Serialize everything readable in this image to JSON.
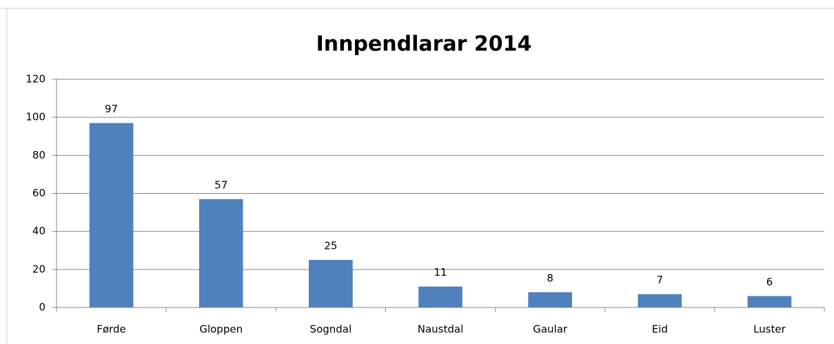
{
  "chart_data": {
    "type": "bar",
    "title": "Innpendlarar 2014",
    "categories": [
      "Førde",
      "Gloppen",
      "Sogndal",
      "Naustdal",
      "Gaular",
      "Eid",
      "Luster"
    ],
    "values": [
      97,
      57,
      25,
      11,
      8,
      7,
      6
    ],
    "color": "#4f81bd",
    "ylim": [
      0,
      120
    ],
    "yticks": [
      0,
      20,
      40,
      60,
      80,
      100,
      120
    ],
    "grid": true
  }
}
